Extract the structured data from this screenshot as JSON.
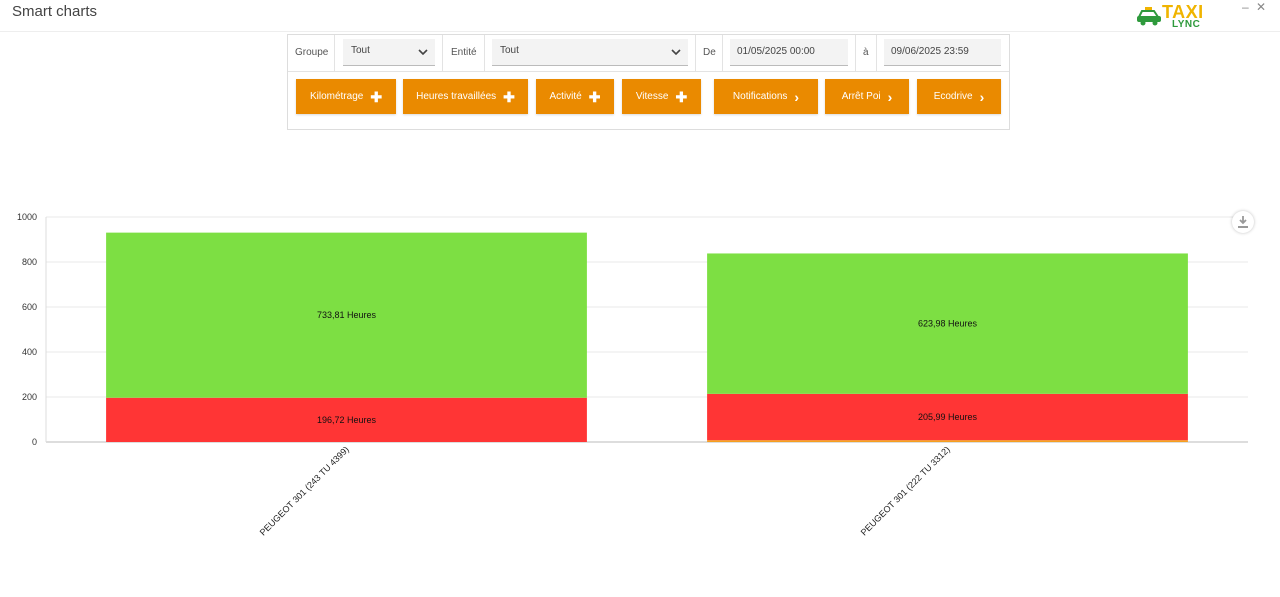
{
  "app": {
    "title": "Smart charts",
    "logo_top": "TAXI",
    "logo_bottom": "LYNC",
    "minimize": "‒",
    "close": "✕"
  },
  "filters": {
    "group_label": "Groupe",
    "group_value": "Tout",
    "entity_label": "Entité",
    "entity_value": "Tout",
    "from_label": "De",
    "from_value": "01/05/2025 00:00",
    "to_label": "à",
    "to_value": "09/06/2025 23:59"
  },
  "buttons": [
    {
      "label": "Kilométrage",
      "icon": "plus-icon"
    },
    {
      "label": "Heures travaillées",
      "icon": "plus-icon"
    },
    {
      "label": "Activité",
      "icon": "plus-icon"
    },
    {
      "label": "Vitesse",
      "icon": "plus-icon"
    },
    {
      "label": "Notifications",
      "icon": "chevron-right-icon"
    },
    {
      "label": "Arrêt Poi",
      "icon": "chevron-right-icon"
    },
    {
      "label": "Ecodrive",
      "icon": "chevron-right-icon"
    }
  ],
  "colors": {
    "accent": "#ea8a00",
    "green": "#7ddf43",
    "red": "#ff3535",
    "orange": "#f5a020"
  },
  "chart_data": {
    "type": "bar",
    "stacked": true,
    "categories": [
      "PEUGEOT 301 (243 TU 4399)",
      "PEUGEOT 301 (222 TU 3312)"
    ],
    "series": [
      {
        "color": "#f5a020",
        "values": [
          0,
          8
        ]
      },
      {
        "color": "#ff3535",
        "values": [
          196.72,
          205.99
        ],
        "labels": [
          "196,72 Heures",
          "205,99 Heures"
        ]
      },
      {
        "color": "#7ddf43",
        "values": [
          733.81,
          623.98
        ],
        "labels": [
          "733,81 Heures",
          "623,98 Heures"
        ]
      }
    ],
    "ylim": [
      0,
      1000
    ],
    "yticks": [
      "0",
      "200",
      "400",
      "600",
      "800",
      "1000"
    ],
    "grid": true,
    "legend": "none"
  }
}
